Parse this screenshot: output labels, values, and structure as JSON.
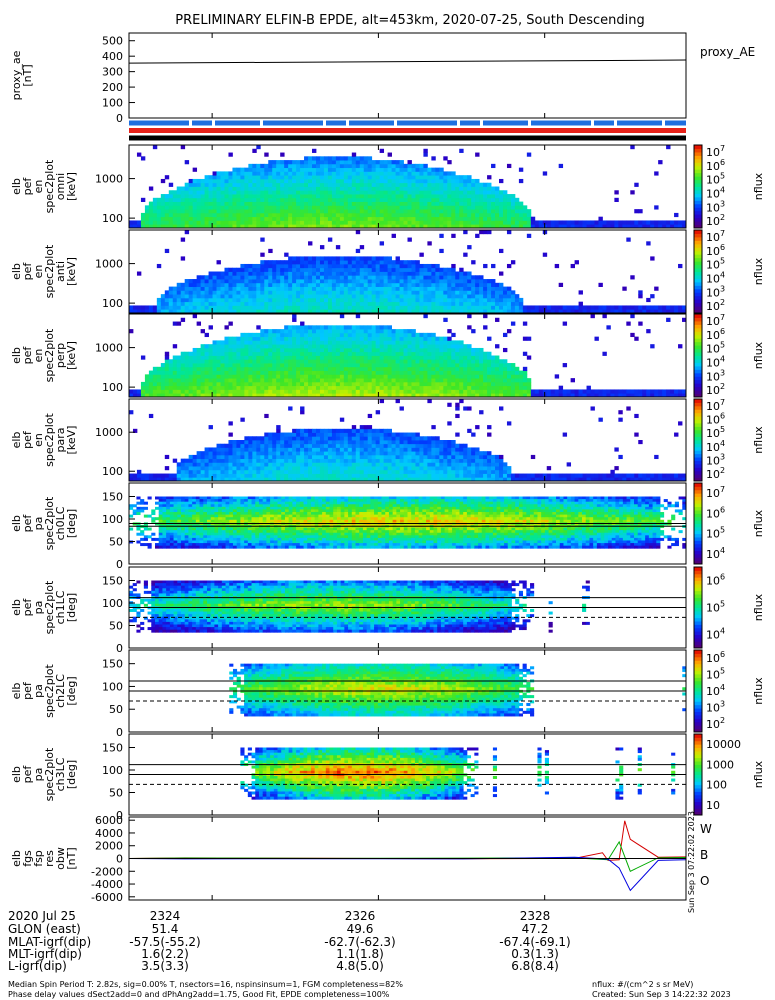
{
  "title": "PRELIMINARY ELFIN-B EPDE, alt=453km, 2020-07-25, South Descending",
  "chart_data": [
    {
      "id": "proxy_ae",
      "type": "line",
      "ylabel": [
        "proxy_ae",
        "[nT]"
      ],
      "legend": "proxy_AE",
      "ylim": [
        0,
        550
      ],
      "ticks": [
        "0",
        "100",
        "200",
        "300",
        "400",
        "500"
      ],
      "tick_values": [
        0,
        100,
        200,
        300,
        400,
        500
      ],
      "series": [
        {
          "x": [
            "2323.0",
            "2329.7"
          ],
          "values": [
            355,
            375
          ]
        }
      ]
    },
    {
      "id": "status_bars",
      "type": "bar",
      "rows": [
        {
          "color": "#1e6fe0",
          "style": "dashed"
        },
        {
          "color": "#e8221a",
          "style": "solid"
        },
        {
          "color": "#000000",
          "style": "solid"
        }
      ]
    },
    {
      "id": "pef_en_omni",
      "type": "heatmap",
      "ylabel": [
        "elb",
        "pef",
        "en",
        "spec2plot",
        "omni",
        "[keV]"
      ],
      "yscale": "log",
      "ticks": [
        "100",
        "1000"
      ],
      "colorbar": {
        "label": "nflux",
        "ticks": [
          "10^2",
          "10^3",
          "10^4",
          "10^5",
          "10^6",
          "10^7"
        ],
        "range_log10": [
          1.3,
          7
        ]
      },
      "intensity_log10": 4.6,
      "spread": 0.95,
      "max_energy_log": 3.55,
      "x_start": 0.02,
      "x_end": 0.72
    },
    {
      "id": "pef_en_anti",
      "type": "heatmap",
      "ylabel": [
        "elb",
        "pef",
        "en",
        "spec2plot",
        "anti",
        "[keV]"
      ],
      "yscale": "log",
      "ticks": [
        "100",
        "1000"
      ],
      "colorbar": {
        "label": "nflux",
        "ticks": [
          "10^2",
          "10^3",
          "10^4",
          "10^5",
          "10^6",
          "10^7"
        ],
        "range_log10": [
          1.3,
          7
        ]
      },
      "intensity_log10": 3.4,
      "spread": 0.7,
      "max_energy_log": 3.2,
      "x_start": 0.05,
      "x_end": 0.7
    },
    {
      "id": "pef_en_perp",
      "type": "heatmap",
      "ylabel": [
        "elb",
        "pef",
        "en",
        "spec2plot",
        "perp",
        "[keV]"
      ],
      "yscale": "log",
      "ticks": [
        "100",
        "1000"
      ],
      "colorbar": {
        "label": "nflux",
        "ticks": [
          "10^2",
          "10^3",
          "10^4",
          "10^5",
          "10^6",
          "10^7"
        ],
        "range_log10": [
          1.3,
          7
        ]
      },
      "intensity_log10": 4.9,
      "spread": 0.95,
      "max_energy_log": 3.6,
      "x_start": 0.02,
      "x_end": 0.72
    },
    {
      "id": "pef_en_para",
      "type": "heatmap",
      "ylabel": [
        "elb",
        "pef",
        "en",
        "spec2plot",
        "para",
        "[keV]"
      ],
      "yscale": "log",
      "ticks": [
        "100",
        "1000"
      ],
      "colorbar": {
        "label": "nflux",
        "ticks": [
          "10^2",
          "10^3",
          "10^4",
          "10^5",
          "10^6",
          "10^7"
        ],
        "range_log10": [
          1.3,
          7
        ]
      },
      "intensity_log10": 3.3,
      "spread": 0.65,
      "max_energy_log": 3.1,
      "x_start": 0.08,
      "x_end": 0.68
    },
    {
      "id": "pef_pa_ch0",
      "type": "heatmap",
      "ylabel": [
        "elb",
        "pef",
        "pa",
        "spec2plot",
        "ch0LC",
        "[deg]"
      ],
      "ylim": [
        0,
        180
      ],
      "ticks": [
        "0",
        "50",
        "100",
        "150"
      ],
      "tick_values": [
        0,
        50,
        100,
        150
      ],
      "colorbar": {
        "label": "nflux",
        "ticks": [
          "10^4",
          "10^5",
          "10^6",
          "10^7"
        ],
        "range_log10": [
          3.6,
          7
        ]
      },
      "intensity_log10": 5.5,
      "x_start": 0.0,
      "x_end": 1.0,
      "lc_lines": [
        90,
        84
      ]
    },
    {
      "id": "pef_pa_ch1",
      "type": "heatmap",
      "ylabel": [
        "elb",
        "pef",
        "pa",
        "spec2plot",
        "ch1LC",
        "[deg]"
      ],
      "ylim": [
        0,
        180
      ],
      "ticks": [
        "0",
        "50",
        "100",
        "150"
      ],
      "tick_values": [
        0,
        50,
        100,
        150
      ],
      "colorbar": {
        "label": "nflux",
        "ticks": [
          "10^4",
          "10^5",
          "10^6"
        ],
        "range_log10": [
          3.3,
          6.8
        ]
      },
      "intensity_log10": 4.9,
      "x_start": 0.0,
      "x_end": 0.72,
      "lc_lines": [
        112,
        90,
        68
      ]
    },
    {
      "id": "pef_pa_ch2",
      "type": "heatmap",
      "ylabel": [
        "elb",
        "pef",
        "pa",
        "spec2plot",
        "ch2LC",
        "[deg]"
      ],
      "ylim": [
        0,
        180
      ],
      "ticks": [
        "0",
        "50",
        "100",
        "150"
      ],
      "tick_values": [
        0,
        50,
        100,
        150
      ],
      "colorbar": {
        "label": "nflux",
        "ticks": [
          "10^2",
          "10^3",
          "10^4",
          "10^5",
          "10^6"
        ],
        "range_log10": [
          1.8,
          6.2
        ]
      },
      "intensity_log10": 4.3,
      "x_start": 0.18,
      "x_end": 0.72,
      "lc_lines": [
        112,
        90,
        68
      ]
    },
    {
      "id": "pef_pa_ch3",
      "type": "heatmap",
      "ylabel": [
        "elb",
        "pef",
        "pa",
        "spec2plot",
        "ch3LC",
        "[deg]"
      ],
      "ylim": [
        0,
        180
      ],
      "ticks": [
        "0",
        "50",
        "100",
        "150"
      ],
      "tick_values": [
        0,
        50,
        100,
        150
      ],
      "colorbar": {
        "label": "nflux",
        "ticks": [
          "10",
          "100",
          "1000",
          "10000"
        ],
        "range_log10": [
          1,
          4
        ]
      },
      "intensity_log10": 2.9,
      "x_start": 0.2,
      "x_end": 0.62,
      "lc_lines": [
        112,
        90,
        68
      ]
    },
    {
      "id": "fgs_fsp_res_obw",
      "type": "line",
      "ylabel": [
        "elb",
        "fgs",
        "fsp",
        "res",
        "obw",
        "[nT]"
      ],
      "ylim": [
        -6500,
        6500
      ],
      "ticks": [
        "-6000",
        "-4000",
        "-2000",
        "0",
        "2000",
        "4000",
        "6000"
      ],
      "tick_values": [
        -6000,
        -4000,
        -2000,
        0,
        2000,
        4000,
        6000
      ],
      "legend": [
        "W",
        "B",
        "O"
      ],
      "legend_colors": [
        "#d40000",
        "#00aa00",
        "#0000e0"
      ],
      "series": [
        {
          "name": "W",
          "color": "#d40000",
          "x": [
            0,
            0.1,
            0.35,
            0.6,
            0.8,
            0.85,
            0.86,
            0.88,
            0.89,
            0.9,
            0.95,
            1
          ],
          "values": [
            0,
            100,
            30,
            -40,
            20,
            900,
            -300,
            -200,
            5900,
            3000,
            200,
            250
          ]
        },
        {
          "name": "B",
          "color": "#00aa00",
          "x": [
            0,
            0.1,
            0.35,
            0.6,
            0.8,
            0.86,
            0.88,
            0.9,
            0.95,
            1
          ],
          "values": [
            0,
            80,
            20,
            60,
            100,
            -200,
            2600,
            -2000,
            100,
            150
          ]
        },
        {
          "name": "O",
          "color": "#0000e0",
          "x": [
            0,
            0.1,
            0.35,
            0.6,
            0.8,
            0.86,
            0.88,
            0.9,
            0.95,
            1
          ],
          "values": [
            0,
            -50,
            -40,
            -60,
            200,
            -100,
            -1500,
            -5000,
            -300,
            -200
          ]
        }
      ]
    }
  ],
  "x_axis": {
    "ticks": [
      "2324",
      "2326",
      "2328"
    ],
    "tick_values": [
      2324,
      2326,
      2328
    ],
    "range": [
      2323.0,
      2329.7
    ]
  },
  "side_stamp": "Sun Sep  3 07:22:02 2023",
  "footer_table": {
    "row_labels": [
      "2020 Jul 25",
      "GLON (east)",
      "MLAT-igrf(dip)",
      "MLT-igrf(dip)",
      "L-igrf(dip)"
    ],
    "columns": [
      [
        "2324",
        "51.4",
        "-57.5(-55.2)",
        "1.6(2.2)",
        "3.5(3.3)"
      ],
      [
        "2326",
        "49.6",
        "-62.7(-62.3)",
        "1.1(1.8)",
        "4.8(5.0)"
      ],
      [
        "2328",
        "47.2",
        "-67.4(-69.1)",
        "0.3(1.3)",
        "6.8(8.4)"
      ]
    ]
  },
  "footer_notes": [
    "Median Spin Period T: 2.82s, sig=0.00% T, nsectors=16, nspinsinsum=1, FGM completeness=82%",
    "Phase delay values dSect2add=0 and dPhAng2add=1.75, Good Fit, EPDE completeness=100%"
  ],
  "footer_right": [
    "nflux: #/(cm^2 s sr MeV)",
    "Created: Sun Sep  3 14:22:32 2023"
  ]
}
